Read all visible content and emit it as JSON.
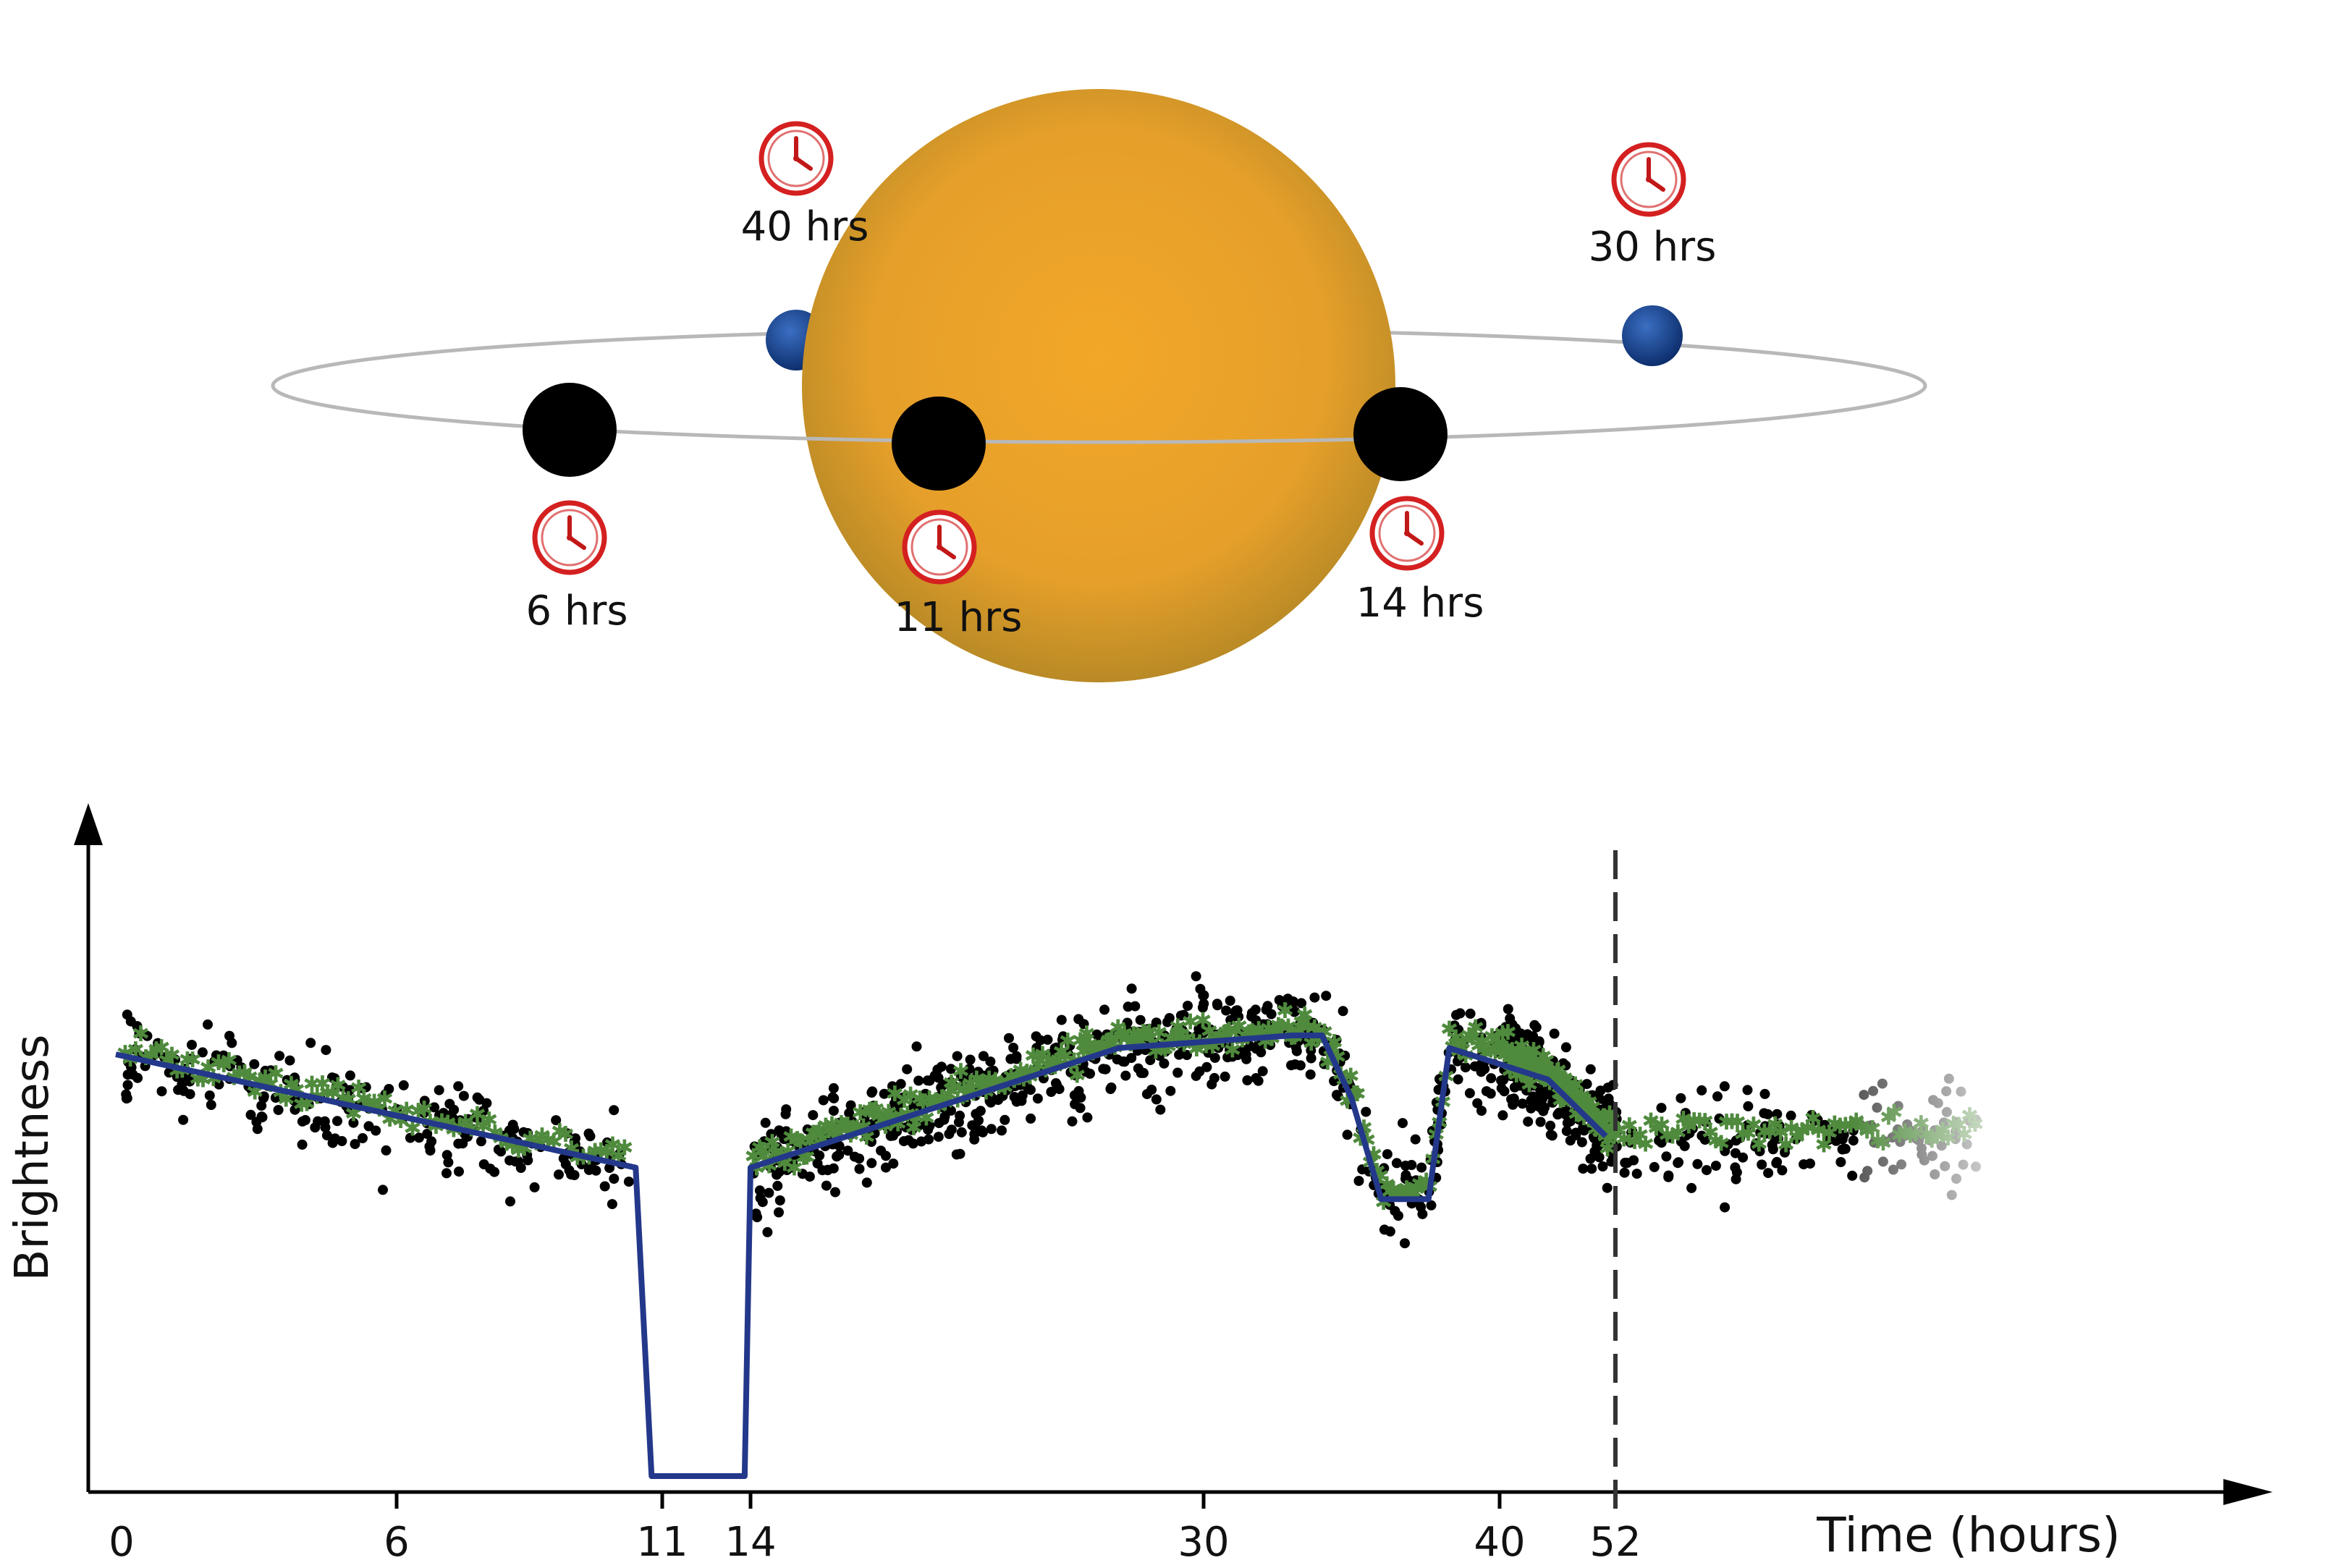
{
  "diagram": {
    "orbit_labels": {
      "t40": "40 hrs",
      "t30": "30 hrs",
      "t6": "6 hrs",
      "t11": "11 hrs",
      "t14": "14 hrs"
    },
    "colors": {
      "star_center": "#f3a728",
      "star_edge": "#b98a26",
      "orbit": "#b8b8b8",
      "planet_dark": "#000000",
      "planet_blue": "#1f4e9c",
      "clock_red": "#d42020"
    },
    "icons": [
      "clock-icon"
    ]
  },
  "chart_data": {
    "type": "line",
    "xlabel": "Time (hours)",
    "ylabel": "Brightness",
    "x_ticks": [
      "0",
      "6",
      "11",
      "14",
      "30",
      "40",
      "52"
    ],
    "marker_line_x": 52,
    "series": [
      {
        "values_x": [
          0,
          10.5,
          10.8,
          13.8,
          14,
          27,
          33,
          34,
          35,
          36,
          36.5,
          37.6,
          38.3,
          45,
          51
        ],
        "values_y": [
          0.67,
          0.49,
          0.0,
          0.0,
          0.49,
          0.68,
          0.7,
          0.7,
          0.6,
          0.44,
          0.44,
          0.44,
          0.68,
          0.63,
          0.54
        ]
      }
    ]
  }
}
